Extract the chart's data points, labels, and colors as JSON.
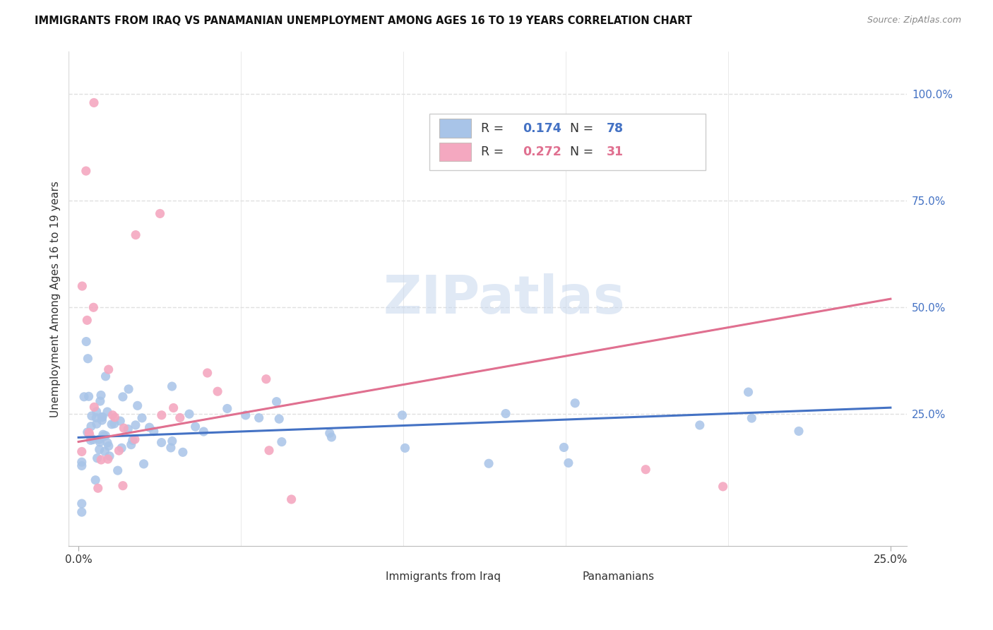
{
  "title": "IMMIGRANTS FROM IRAQ VS PANAMANIAN UNEMPLOYMENT AMONG AGES 16 TO 19 YEARS CORRELATION CHART",
  "source": "Source: ZipAtlas.com",
  "ylabel": "Unemployment Among Ages 16 to 19 years",
  "xlim": [
    0.0,
    0.25
  ],
  "ylim": [
    -0.06,
    1.1
  ],
  "legend_iraq_R": "0.174",
  "legend_iraq_N": "78",
  "legend_pan_R": "0.272",
  "legend_pan_N": "31",
  "iraq_color": "#a8c4e8",
  "pan_color": "#f4a8c0",
  "iraq_line_color": "#4472c4",
  "pan_line_color": "#e07090",
  "pan_dash_color": "#e8a0b0",
  "watermark": "ZIPatlas",
  "grid_color": "#e0e0e0",
  "title_fontsize": 10.5,
  "source_fontsize": 9
}
